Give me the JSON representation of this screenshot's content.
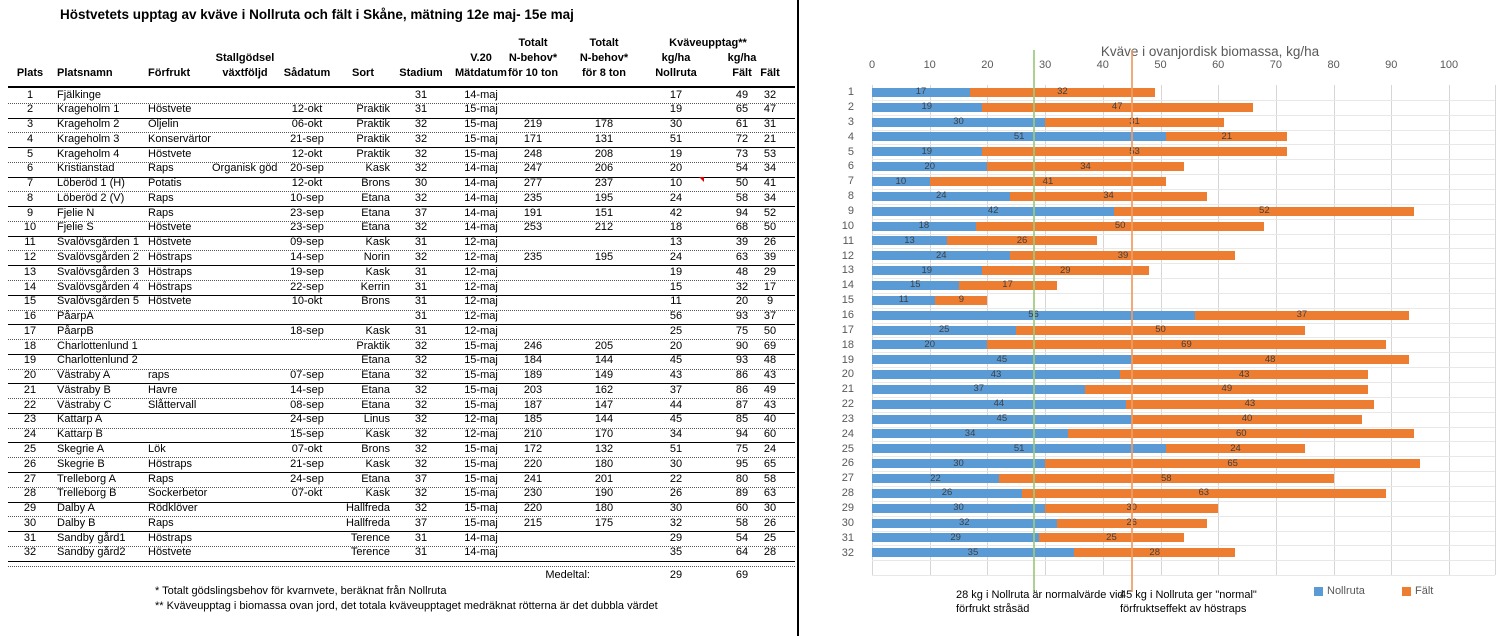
{
  "title": "Höstvetets upptag av kväve i Nollruta och fält i Skåne, mätning 12e maj- 15e maj",
  "table": {
    "header": {
      "span_label": "Kväveupptag**",
      "columns": [
        [
          "",
          "",
          "Plats"
        ],
        [
          "",
          "",
          "Platsnamn"
        ],
        [
          "",
          "",
          "Förfrukt"
        ],
        [
          "",
          "Stallgödsel",
          "växtföljd"
        ],
        [
          "",
          "",
          "Sådatum"
        ],
        [
          "",
          "",
          "Sort"
        ],
        [
          "",
          "",
          "Stadium"
        ],
        [
          "",
          "V.20",
          "Mätdatum"
        ],
        [
          "Totalt",
          "N-behov*",
          "för 10 ton"
        ],
        [
          "Totalt",
          "N-behov*",
          "för 8 ton"
        ],
        [
          "",
          "kg/ha",
          "Nollruta"
        ],
        [
          "",
          "kg/ha",
          "Fält"
        ],
        [
          "",
          "",
          "Fält"
        ]
      ]
    },
    "rows": [
      [
        "1",
        "Fjälkinge",
        "",
        "",
        "",
        "",
        "31",
        "14-maj",
        "",
        "",
        "17",
        "49",
        "32"
      ],
      [
        "2",
        "Krageholm 1",
        "Höstvete",
        "",
        "12-okt",
        "Praktik",
        "31",
        "15-maj",
        "",
        "",
        "19",
        "65",
        "47"
      ],
      [
        "3",
        "Krageholm 2",
        "Oljelin",
        "",
        "06-okt",
        "Praktik",
        "32",
        "15-maj",
        "219",
        "178",
        "30",
        "61",
        "31"
      ],
      [
        "4",
        "Krageholm 3",
        "Konservärtor",
        "",
        "21-sep",
        "Praktik",
        "32",
        "15-maj",
        "171",
        "131",
        "51",
        "72",
        "21"
      ],
      [
        "5",
        "Krageholm 4",
        "Höstvete",
        "",
        "12-okt",
        "Praktik",
        "32",
        "15-maj",
        "248",
        "208",
        "19",
        "73",
        "53"
      ],
      [
        "6",
        "Kristianstad",
        "Raps",
        "Organisk göds",
        "20-sep",
        "Kask",
        "32",
        "14-maj",
        "247",
        "206",
        "20",
        "54",
        "34"
      ],
      [
        "7",
        "Löberöd 1 (H)",
        "Potatis",
        "",
        "12-okt",
        "Brons",
        "30",
        "14-maj",
        "277",
        "237",
        "10",
        "50",
        "41"
      ],
      [
        "8",
        "Löberöd 2 (V)",
        "Raps",
        "",
        "10-sep",
        "Etana",
        "32",
        "14-maj",
        "235",
        "195",
        "24",
        "58",
        "34"
      ],
      [
        "9",
        "Fjelie N",
        "Raps",
        "",
        "23-sep",
        "Etana",
        "37",
        "14-maj",
        "191",
        "151",
        "42",
        "94",
        "52"
      ],
      [
        "10",
        "Fjelie S",
        "Höstvete",
        "",
        "23-sep",
        "Etana",
        "32",
        "14-maj",
        "253",
        "212",
        "18",
        "68",
        "50"
      ],
      [
        "11",
        "Svalövsgården 1",
        "Höstvete",
        "",
        "09-sep",
        "Kask",
        "31",
        "12-maj",
        "",
        "",
        "13",
        "39",
        "26"
      ],
      [
        "12",
        "Svalövsgården 2",
        "Höstraps",
        "",
        "14-sep",
        "Norin",
        "32",
        "12-maj",
        "235",
        "195",
        "24",
        "63",
        "39"
      ],
      [
        "13",
        "Svalövsgården 3",
        "Höstraps",
        "",
        "19-sep",
        "Kask",
        "31",
        "12-maj",
        "",
        "",
        "19",
        "48",
        "29"
      ],
      [
        "14",
        "Svalövsgården 4",
        "Höstraps",
        "",
        "22-sep",
        "Kerrin",
        "31",
        "12-maj",
        "",
        "",
        "15",
        "32",
        "17"
      ],
      [
        "15",
        "Svalövsgården 5",
        "Höstvete",
        "",
        "10-okt",
        "Brons",
        "31",
        "12-maj",
        "",
        "",
        "11",
        "20",
        "9"
      ],
      [
        "16",
        "PåarpA",
        "",
        "",
        "",
        "",
        "31",
        "12-maj",
        "",
        "",
        "56",
        "93",
        "37"
      ],
      [
        "17",
        "PåarpB",
        "",
        "",
        "18-sep",
        "Kask",
        "31",
        "12-maj",
        "",
        "",
        "25",
        "75",
        "50"
      ],
      [
        "18",
        "Charlottenlund 1",
        "",
        "",
        "",
        "Praktik",
        "32",
        "15-maj",
        "246",
        "205",
        "20",
        "90",
        "69"
      ],
      [
        "19",
        "Charlottenlund 2",
        "",
        "",
        "",
        "Etana",
        "32",
        "15-maj",
        "184",
        "144",
        "45",
        "93",
        "48"
      ],
      [
        "20",
        "Västraby A",
        "raps",
        "",
        "07-sep",
        "Etana",
        "32",
        "15-maj",
        "189",
        "149",
        "43",
        "86",
        "43"
      ],
      [
        "21",
        "Västraby B",
        "Havre",
        "",
        "14-sep",
        "Etana",
        "32",
        "15-maj",
        "203",
        "162",
        "37",
        "86",
        "49"
      ],
      [
        "22",
        "Västraby C",
        "Slåttervall",
        "",
        "08-sep",
        "Etana",
        "32",
        "15-maj",
        "187",
        "147",
        "44",
        "87",
        "43"
      ],
      [
        "23",
        "Kattarp A",
        "",
        "",
        "24-sep",
        "Linus",
        "32",
        "12-maj",
        "185",
        "144",
        "45",
        "85",
        "40"
      ],
      [
        "24",
        "Kattarp B",
        "",
        "",
        "15-sep",
        "Kask",
        "32",
        "12-maj",
        "210",
        "170",
        "34",
        "94",
        "60"
      ],
      [
        "25",
        "Skegrie A",
        "Lök",
        "",
        "07-okt",
        "Brons",
        "32",
        "15-maj",
        "172",
        "132",
        "51",
        "75",
        "24"
      ],
      [
        "26",
        "Skegrie B",
        "Höstraps",
        "",
        "21-sep",
        "Kask",
        "32",
        "15-maj",
        "220",
        "180",
        "30",
        "95",
        "65"
      ],
      [
        "27",
        "Trelleborg A",
        "Raps",
        "",
        "24-sep",
        "Etana",
        "37",
        "15-maj",
        "241",
        "201",
        "22",
        "80",
        "58"
      ],
      [
        "28",
        "Trelleborg B",
        "Sockerbetor",
        "",
        "07-okt",
        "Kask",
        "32",
        "15-maj",
        "230",
        "190",
        "26",
        "89",
        "63"
      ],
      [
        "29",
        "Dalby A",
        "Rödklöver",
        "",
        "",
        "Hallfreda",
        "32",
        "15-maj",
        "220",
        "180",
        "30",
        "60",
        "30"
      ],
      [
        "30",
        "Dalby B",
        "Raps",
        "",
        "",
        "Hallfreda",
        "37",
        "15-maj",
        "215",
        "175",
        "32",
        "58",
        "26"
      ],
      [
        "31",
        "Sandby gård1",
        "Höstraps",
        "",
        "",
        "Terence",
        "31",
        "14-maj",
        "",
        "",
        "29",
        "54",
        "25"
      ],
      [
        "32",
        "Sandby gård2",
        "Höstvete",
        "",
        "",
        "Terence",
        "31",
        "14-maj",
        "",
        "",
        "35",
        "64",
        "28"
      ]
    ],
    "comment_marker": {
      "row_index": 6,
      "col_index": 10
    },
    "summary": {
      "label": "Medeltal:",
      "nollruta": "29",
      "falt": "69"
    },
    "footnotes": [
      "* Totalt gödslingsbehov för kvarnvete, beräknat från Nollruta",
      "** Kväveupptag i biomassa ovan jord, det totala kväveupptaget medräknat rötterna är det dubbla värdet"
    ]
  },
  "chart_data": {
    "type": "bar",
    "orientation": "horizontal",
    "stacked": true,
    "title": "Kväve i ovanjordisk biomassa, kg/ha",
    "categories": [
      1,
      2,
      3,
      4,
      5,
      6,
      7,
      8,
      9,
      10,
      11,
      12,
      13,
      14,
      15,
      16,
      17,
      18,
      19,
      20,
      21,
      22,
      23,
      24,
      25,
      26,
      27,
      28,
      29,
      30,
      31,
      32
    ],
    "series": [
      {
        "name": "Nollruta",
        "color": "#5B9BD5",
        "values": [
          17,
          19,
          30,
          51,
          19,
          20,
          10,
          24,
          42,
          18,
          13,
          24,
          19,
          15,
          11,
          56,
          25,
          20,
          45,
          43,
          37,
          44,
          45,
          34,
          51,
          30,
          22,
          26,
          30,
          32,
          29,
          35
        ]
      },
      {
        "name": "Fält",
        "color": "#ED7D31",
        "values": [
          32,
          47,
          31,
          21,
          53,
          34,
          41,
          34,
          52,
          50,
          26,
          39,
          29,
          17,
          9,
          37,
          50,
          69,
          48,
          43,
          49,
          43,
          40,
          60,
          24,
          65,
          58,
          63,
          30,
          26,
          25,
          28
        ]
      }
    ],
    "x_ticks": [
      0,
      10,
      20,
      30,
      40,
      50,
      60,
      70,
      80,
      90,
      100
    ],
    "xlim": [
      0,
      108
    ],
    "grid": true,
    "data_labels": true,
    "legend_position": "bottom-right",
    "legend": [
      {
        "label": "Nollruta",
        "color": "#5B9BD5"
      },
      {
        "label": "Fält",
        "color": "#ED7D31"
      }
    ],
    "reference_lines": [
      {
        "value": 28,
        "color": "#9DC97E",
        "lines": [
          "28 kg i Nollruta är normalvärde vid",
          "förfrukt stråsäd"
        ]
      },
      {
        "value": 45,
        "color": "#F09B62",
        "lines": [
          "45 kg i Nollruta ger \"normal\"",
          "förfruktseffekt av höstraps"
        ]
      }
    ]
  }
}
